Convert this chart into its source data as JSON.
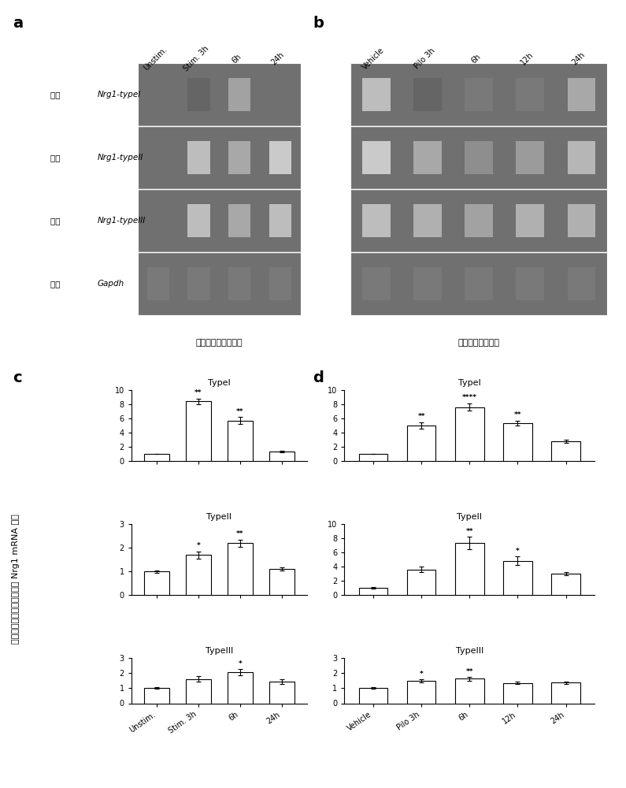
{
  "panel_labels": [
    "a",
    "b",
    "c",
    "d"
  ],
  "gel_caption_a": "电刺激点燃癫痫模型",
  "gel_caption_b": "匹罗卡品癫痫模型",
  "gel_labels_a": [
    "大鼠  Nrg1-typeI",
    "大鼠  Nrg1-typeII",
    "大鼠  Nrg1-typeIII",
    "大鼠  Gapdh"
  ],
  "col_labels_a": [
    "Unstim.",
    "Stim. 3h",
    "6h",
    "24h"
  ],
  "col_labels_b": [
    "Vehicle",
    "Pilo 3h",
    "6h",
    "12h",
    "24h"
  ],
  "ylabel_rotated": "标准化后的大鼠海马组织中 Nrg1 mRNA 表达",
  "c_typeI": {
    "title": "TypeI",
    "categories": [
      "Unstim.",
      "Stim. 3h",
      "6h",
      "24h"
    ],
    "values": [
      1.0,
      8.4,
      5.7,
      1.3
    ],
    "errors": [
      0.05,
      0.4,
      0.5,
      0.1
    ],
    "sig": [
      "",
      "**",
      "**",
      ""
    ],
    "ylim": [
      0,
      10
    ],
    "yticks": [
      0,
      2,
      4,
      6,
      8,
      10
    ]
  },
  "c_typeII": {
    "title": "TypeII",
    "categories": [
      "Unstim.",
      "Stim. 3h",
      "6h",
      "24h"
    ],
    "values": [
      1.0,
      1.7,
      2.2,
      1.1
    ],
    "errors": [
      0.05,
      0.15,
      0.15,
      0.08
    ],
    "sig": [
      "",
      "*",
      "**",
      ""
    ],
    "ylim": [
      0,
      3
    ],
    "yticks": [
      0,
      1,
      2,
      3
    ]
  },
  "c_typeIII": {
    "title": "TypeIII",
    "categories": [
      "Unstim.",
      "Stim. 3h",
      "6h",
      "24h"
    ],
    "values": [
      1.0,
      1.6,
      2.05,
      1.45
    ],
    "errors": [
      0.05,
      0.18,
      0.22,
      0.15
    ],
    "sig": [
      "",
      "",
      "*",
      ""
    ],
    "ylim": [
      0,
      3
    ],
    "yticks": [
      0,
      1,
      2,
      3
    ]
  },
  "d_typeI": {
    "title": "TypeI",
    "categories": [
      "Vehicle",
      "Pilo 3h",
      "6h",
      "12h",
      "24h"
    ],
    "values": [
      1.0,
      5.0,
      7.6,
      5.3,
      2.8
    ],
    "errors": [
      0.05,
      0.45,
      0.5,
      0.35,
      0.25
    ],
    "sig": [
      "",
      "**",
      "****",
      "**",
      ""
    ],
    "ylim": [
      0,
      10
    ],
    "yticks": [
      0,
      2,
      4,
      6,
      8,
      10
    ]
  },
  "d_typeII": {
    "title": "TypeII",
    "categories": [
      "Vehicle",
      "Pilo 3h",
      "6h",
      "12h",
      "24h"
    ],
    "values": [
      1.0,
      3.6,
      7.3,
      4.8,
      3.0
    ],
    "errors": [
      0.08,
      0.35,
      0.9,
      0.6,
      0.25
    ],
    "sig": [
      "",
      "",
      "**",
      "*",
      ""
    ],
    "ylim": [
      0,
      10
    ],
    "yticks": [
      0,
      2,
      4,
      6,
      8,
      10
    ]
  },
  "d_typeIII": {
    "title": "TypeIII",
    "categories": [
      "Vehicle",
      "Pilo 3h",
      "6h",
      "12h",
      "24h"
    ],
    "values": [
      1.0,
      1.48,
      1.62,
      1.35,
      1.38
    ],
    "errors": [
      0.05,
      0.1,
      0.12,
      0.08,
      0.08
    ],
    "sig": [
      "",
      "*",
      "**",
      "",
      ""
    ],
    "ylim": [
      0,
      3
    ],
    "yticks": [
      0,
      1,
      2,
      3
    ]
  },
  "bar_color": "#ffffff",
  "bar_edgecolor": "#000000",
  "background_color": "#ffffff",
  "gel_bg_color": "#888888",
  "gel_band_color_light": "#dddddd",
  "gel_band_color_dark": "#999999"
}
